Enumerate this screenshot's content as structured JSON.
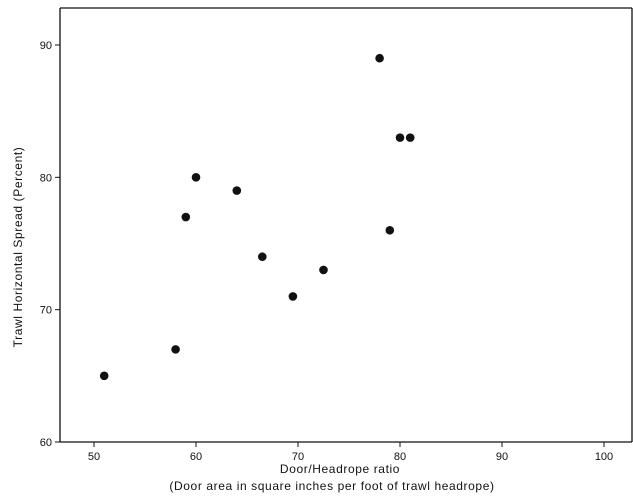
{
  "chart_data": {
    "type": "scatter",
    "title": "",
    "xlabel": "Door/Headrope ratio",
    "xlabel_sub": "(Door area in square inches per foot of trawl headrope)",
    "ylabel": "Trawl Horizontal Spread (Percent)",
    "xlim": [
      46,
      104
    ],
    "ylim": [
      60,
      93
    ],
    "xticks": [
      50,
      60,
      70,
      80,
      90,
      100
    ],
    "yticks": [
      60,
      70,
      80,
      90
    ],
    "grid": false,
    "points": [
      {
        "x": 51,
        "y": 65
      },
      {
        "x": 58,
        "y": 67
      },
      {
        "x": 59,
        "y": 77
      },
      {
        "x": 60,
        "y": 80
      },
      {
        "x": 64,
        "y": 79
      },
      {
        "x": 66.5,
        "y": 74
      },
      {
        "x": 69.5,
        "y": 71
      },
      {
        "x": 72.5,
        "y": 73
      },
      {
        "x": 78,
        "y": 89
      },
      {
        "x": 79,
        "y": 76
      },
      {
        "x": 80,
        "y": 83
      },
      {
        "x": 81,
        "y": 83
      }
    ],
    "colors": {
      "marker": "#111111",
      "axis": "#111111"
    }
  }
}
